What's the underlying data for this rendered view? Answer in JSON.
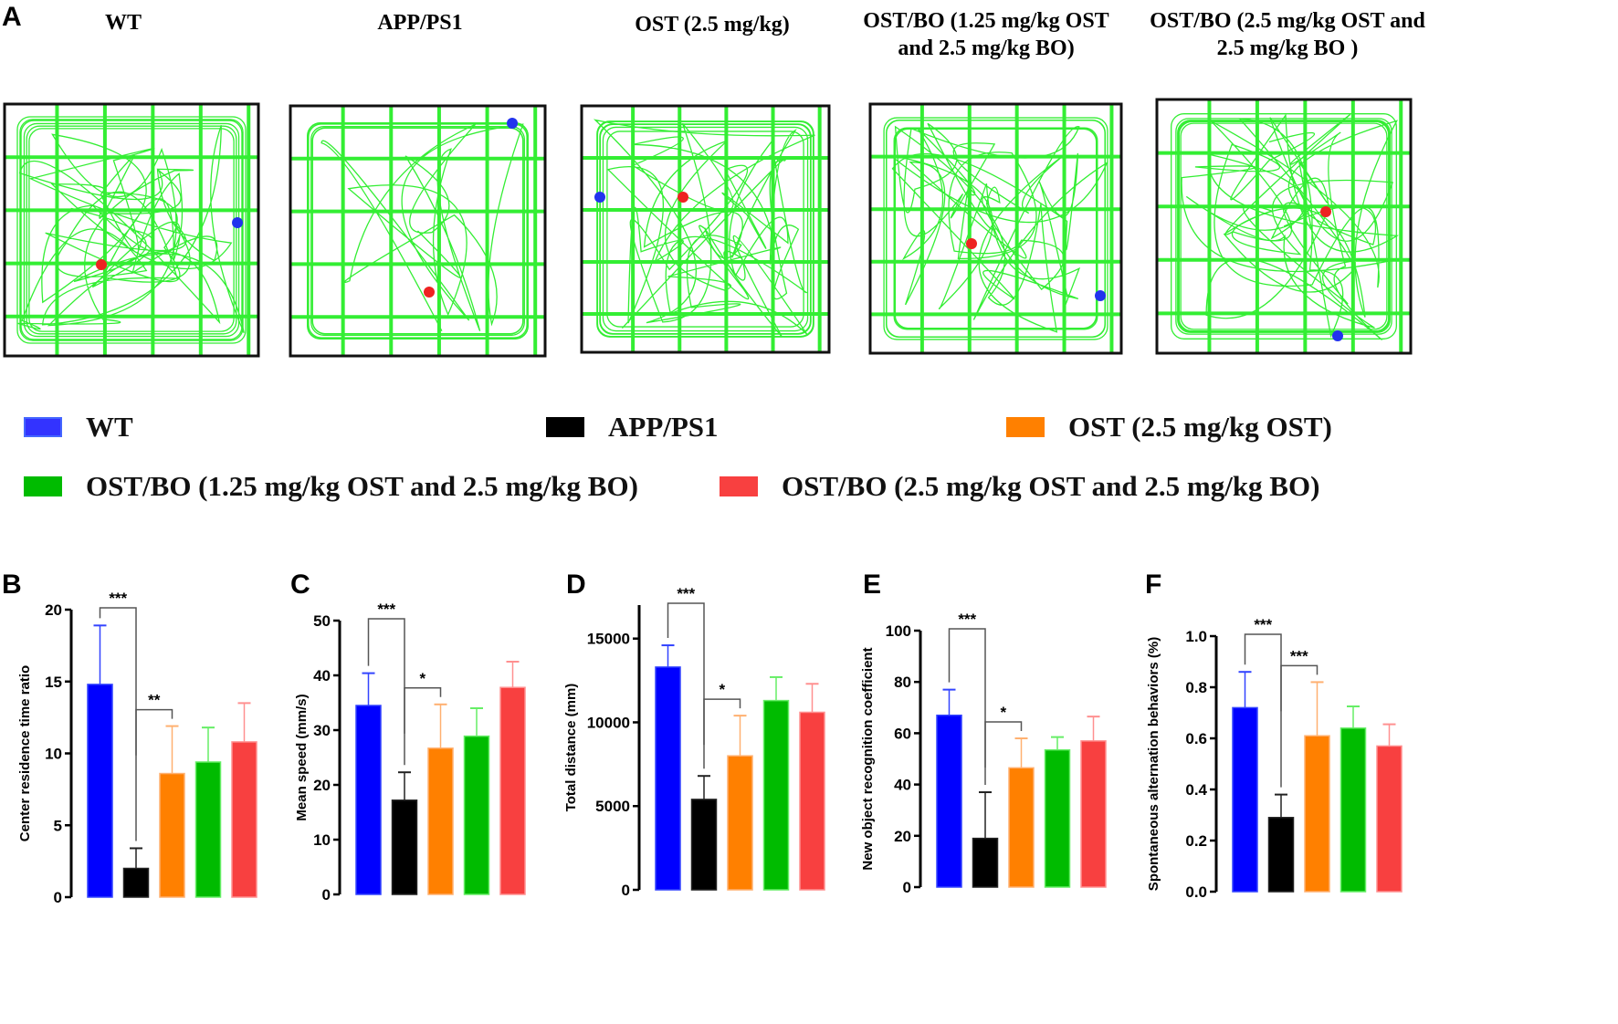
{
  "panel_a": {
    "letter": "A",
    "titles": [
      "WT",
      "APP/PS1",
      "OST (2.5 mg/kg)",
      "OST/BO (1.25 mg/kg OST and 2.5 mg/kg BO)",
      "OST/BO (2.5 mg/kg OST and 2.5 mg/kg BO )"
    ],
    "track_color": "#33ee33"
  },
  "legend": [
    {
      "label": "WT",
      "color": "#3333ff"
    },
    {
      "label": "APP/PS1",
      "color": "#000000"
    },
    {
      "label": "OST  (2.5 mg/kg OST)",
      "color": "#ff8000"
    },
    {
      "label": "OST/BO (1.25 mg/kg OST and 2.5 mg/kg BO)",
      "color": "#00bb00"
    },
    {
      "label": "OST/BO (2.5 mg/kg OST and 2.5 mg/kg BO)",
      "color": "#f84040"
    }
  ],
  "chart_data": [
    {
      "letter": "B",
      "type": "bar",
      "ylabel": "Center residence time ratio",
      "ylim": [
        0,
        20
      ],
      "ticks": [
        0,
        5,
        10,
        15,
        20
      ],
      "tick_labels": [
        "0",
        "5",
        "10",
        "15",
        "20"
      ],
      "categories": [
        "WT",
        "APP/PS1",
        "OST",
        "OST/BO 1.25",
        "OST/BO 2.5"
      ],
      "values": [
        14.8,
        2.0,
        8.6,
        9.4,
        10.8
      ],
      "errors": [
        4.1,
        1.4,
        3.3,
        2.4,
        2.7
      ],
      "significance": [
        {
          "pair": [
            0,
            1
          ],
          "label": "***"
        },
        {
          "pair": [
            1,
            2
          ],
          "label": "**"
        },
        {
          "pair": [
            1,
            3
          ],
          "label": "***"
        },
        {
          "pair": [
            1,
            4
          ],
          "label": "***"
        }
      ]
    },
    {
      "letter": "C",
      "type": "bar",
      "ylabel": "Mean speed (mm/s)",
      "ylim": [
        0,
        50
      ],
      "ticks": [
        0,
        10,
        20,
        30,
        40,
        50
      ],
      "tick_labels": [
        "0",
        "10",
        "20",
        "30",
        "40",
        "50"
      ],
      "categories": [
        "WT",
        "APP/PS1",
        "OST",
        "OST/BO 1.25",
        "OST/BO 2.5"
      ],
      "values": [
        34.5,
        17.2,
        26.7,
        28.9,
        37.8
      ],
      "errors": [
        5.9,
        5.1,
        8.0,
        5.1,
        4.7
      ],
      "significance": [
        {
          "pair": [
            0,
            1
          ],
          "label": "***"
        },
        {
          "pair": [
            1,
            2
          ],
          "label": "*"
        },
        {
          "pair": [
            1,
            3
          ],
          "label": "*"
        },
        {
          "pair": [
            1,
            4
          ],
          "label": "***"
        }
      ]
    },
    {
      "letter": "D",
      "type": "bar",
      "ylabel": "Total distance (mm)",
      "ylim": [
        0,
        17000
      ],
      "ticks": [
        0,
        5000,
        10000,
        15000
      ],
      "tick_labels": [
        "0",
        "5000",
        "10000",
        "15000"
      ],
      "categories": [
        "WT",
        "APP/PS1",
        "OST",
        "OST/BO 1.25",
        "OST/BO 2.5"
      ],
      "values": [
        13300,
        5400,
        8000,
        11300,
        10600
      ],
      "errors": [
        1300,
        1400,
        2400,
        1400,
        1700
      ],
      "significance": [
        {
          "pair": [
            0,
            1
          ],
          "label": "***"
        },
        {
          "pair": [
            1,
            2
          ],
          "label": "*"
        },
        {
          "pair": [
            1,
            3
          ],
          "label": "***"
        },
        {
          "pair": [
            1,
            4
          ],
          "label": "***"
        }
      ]
    },
    {
      "letter": "E",
      "type": "bar",
      "ylabel": "New object recognition coefficient",
      "ylim": [
        0,
        100
      ],
      "ticks": [
        0,
        20,
        40,
        60,
        80,
        100
      ],
      "tick_labels": [
        "0",
        "20",
        "40",
        "60",
        "80",
        "100"
      ],
      "categories": [
        "WT",
        "APP/PS1",
        "OST",
        "OST/BO 1.25",
        "OST/BO 2.5"
      ],
      "values": [
        67,
        19,
        46.5,
        53.5,
        57
      ],
      "errors": [
        10,
        18,
        11.5,
        5,
        9.5
      ],
      "significance": [
        {
          "pair": [
            0,
            1
          ],
          "label": "***"
        },
        {
          "pair": [
            1,
            2
          ],
          "label": "*"
        },
        {
          "pair": [
            1,
            3
          ],
          "label": "***"
        },
        {
          "pair": [
            1,
            4
          ],
          "label": "***"
        }
      ]
    },
    {
      "letter": "F",
      "type": "bar",
      "ylabel": "Spontaneous alternation behaviors (%)",
      "ylim": [
        0,
        1.0
      ],
      "ticks": [
        0,
        0.2,
        0.4,
        0.6,
        0.8,
        1.0
      ],
      "tick_labels": [
        "0.0",
        "0.2",
        "0.4",
        "0.6",
        "0.8",
        "1.0"
      ],
      "categories": [
        "WT",
        "APP/PS1",
        "OST",
        "OST/BO 1.25",
        "OST/BO 2.5"
      ],
      "values": [
        0.72,
        0.29,
        0.61,
        0.64,
        0.57
      ],
      "errors": [
        0.14,
        0.09,
        0.21,
        0.085,
        0.085
      ],
      "significance": [
        {
          "pair": [
            0,
            1
          ],
          "label": "***"
        },
        {
          "pair": [
            1,
            2
          ],
          "label": "***"
        },
        {
          "pair": [
            1,
            3
          ],
          "label": "***"
        },
        {
          "pair": [
            1,
            4
          ],
          "label": "***"
        }
      ]
    }
  ]
}
